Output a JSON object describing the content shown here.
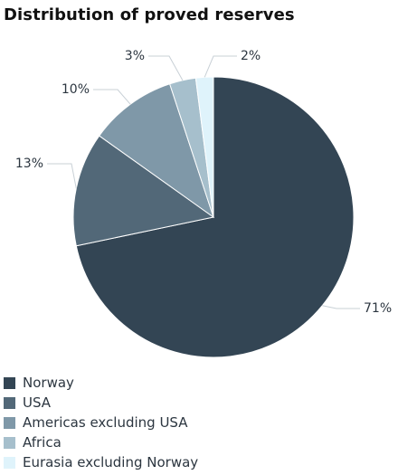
{
  "chart_data": {
    "type": "pie",
    "title": "Distribution of proved reserves",
    "start_angle_deg": 0,
    "direction": "clockwise",
    "slices": [
      {
        "name": "Norway",
        "value": 71,
        "label": "71%",
        "color": "#334554"
      },
      {
        "name": "USA",
        "value": 13,
        "label": "13%",
        "color": "#526878"
      },
      {
        "name": "Americas excluding USA",
        "value": 10,
        "label": "10%",
        "color": "#7f98a8"
      },
      {
        "name": "Africa",
        "value": 3,
        "label": "3%",
        "color": "#a6bfcc"
      },
      {
        "name": "Eurasia excluding Norway",
        "value": 2,
        "label": "2%",
        "color": "#dff3fb"
      }
    ],
    "legend_position": "bottom-left",
    "leader_line_color": "#c8d0d6"
  }
}
